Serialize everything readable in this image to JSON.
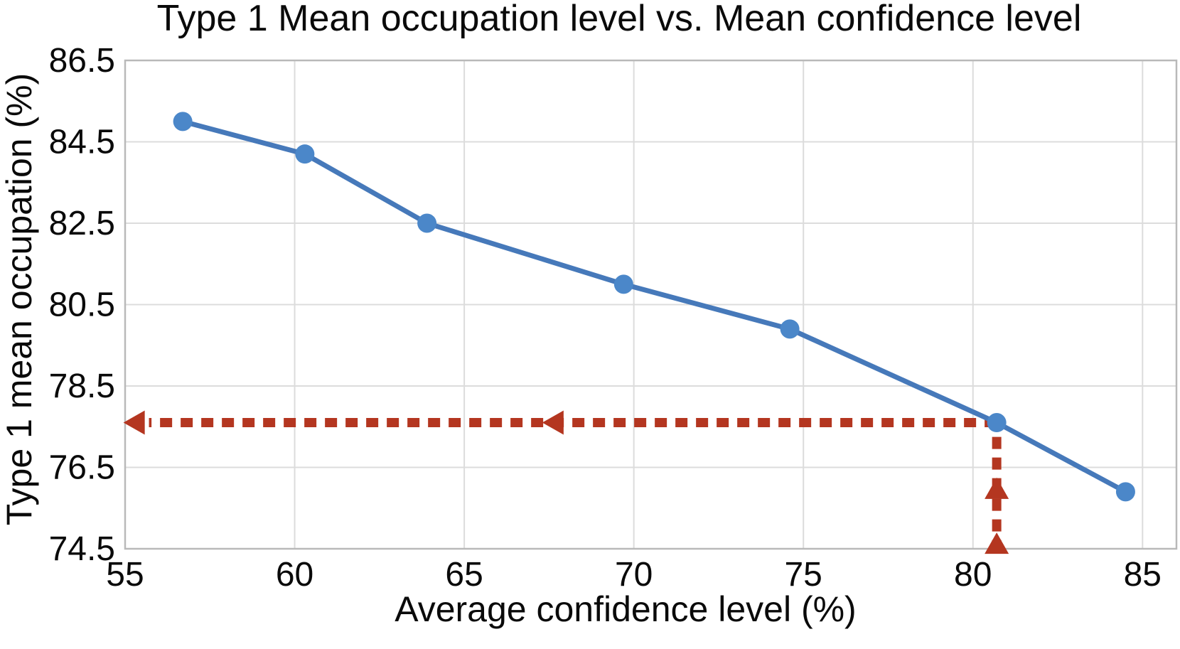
{
  "chart_data": {
    "type": "line",
    "title": "Type 1 Mean occupation level vs. Mean confidence level",
    "xlabel": "Average confidence level (%)",
    "ylabel": "Type 1 mean occupation (%)",
    "x_ticks": [
      55,
      60,
      65,
      70,
      75,
      80,
      85
    ],
    "y_ticks": [
      86.5,
      84.5,
      82.5,
      80.5,
      78.5,
      76.5,
      74.5
    ],
    "xlim": [
      55,
      86
    ],
    "ylim": [
      74.5,
      86.5
    ],
    "grid": true,
    "legend_position": "none",
    "series": [
      {
        "name": "Type 1 mean occupation",
        "marker": "circle",
        "points": [
          [
            56.7,
            85.0
          ],
          [
            60.3,
            84.2
          ],
          [
            63.9,
            82.5
          ],
          [
            69.7,
            81.0
          ],
          [
            74.6,
            79.9
          ],
          [
            80.7,
            77.6
          ],
          [
            84.5,
            75.9
          ]
        ]
      }
    ],
    "annotation": {
      "description": "red dashed guide arrows marking the point (80.7, 77.6)",
      "target": [
        80.7,
        77.6
      ],
      "h_arrow": {
        "y": 77.6,
        "x_start": 80.7,
        "x_end": 55.2,
        "heads_x": [
          54.95,
          67.3
        ]
      },
      "v_arrow": {
        "x": 80.7,
        "y_start": 77.25,
        "y_end": 74.55,
        "heads_y": [
          76.25,
          74.9
        ]
      }
    },
    "colors": {
      "series_line": "#4679ba",
      "series_marker": "#4b87c9",
      "annotation": "#b43620",
      "grid": "#dcdcdc",
      "spine": "#b9b9b9",
      "text": "#0a0a0a",
      "background": "#ffffff"
    }
  }
}
